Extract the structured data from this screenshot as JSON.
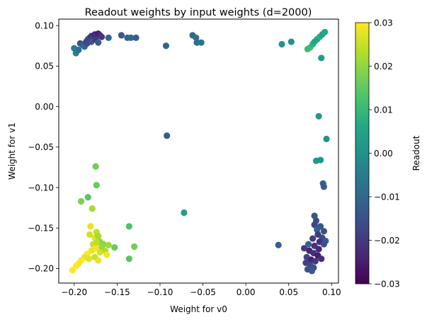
{
  "chart_data": {
    "type": "scatter",
    "title": "Readout weights by input weights  (d=2000)",
    "xlabel": "Weight for v0",
    "ylabel": "Weight for v1",
    "xlim": [
      -0.218,
      0.108
    ],
    "ylim": [
      -0.218,
      0.108
    ],
    "xticks": [
      -0.2,
      -0.15,
      -0.1,
      -0.05,
      0.0,
      0.05,
      0.1
    ],
    "xtick_labels": [
      "−0.20",
      "−0.15",
      "−0.10",
      "−0.05",
      "0.00",
      "0.05",
      "0.10"
    ],
    "yticks": [
      0.1,
      0.05,
      0.0,
      -0.05,
      -0.1,
      -0.15,
      -0.2
    ],
    "ytick_labels": [
      "0.10",
      "0.05",
      "0.00",
      "−0.05",
      "−0.10",
      "−0.15",
      "−0.20"
    ],
    "grid": false,
    "colorbar": {
      "label": "Readout",
      "colormap": "viridis",
      "min": -0.03,
      "max": 0.03,
      "ticks": [
        0.03,
        0.02,
        0.01,
        0.0,
        -0.01,
        -0.02,
        -0.03
      ],
      "tick_labels": [
        "0.03",
        "0.02",
        "0.01",
        "0.00",
        "−0.01",
        "−0.02",
        "−0.03"
      ]
    },
    "points": [
      {
        "x": -0.2,
        "y": 0.072,
        "c": -0.005
      },
      {
        "x": -0.198,
        "y": 0.066,
        "c": -0.004
      },
      {
        "x": -0.195,
        "y": 0.07,
        "c": -0.008
      },
      {
        "x": -0.193,
        "y": 0.078,
        "c": -0.015
      },
      {
        "x": -0.19,
        "y": 0.076,
        "c": -0.012
      },
      {
        "x": -0.188,
        "y": 0.074,
        "c": -0.01
      },
      {
        "x": -0.186,
        "y": 0.08,
        "c": -0.02
      },
      {
        "x": -0.184,
        "y": 0.083,
        "c": -0.018
      },
      {
        "x": -0.182,
        "y": 0.085,
        "c": -0.016
      },
      {
        "x": -0.18,
        "y": 0.087,
        "c": -0.022
      },
      {
        "x": -0.178,
        "y": 0.086,
        "c": -0.019
      },
      {
        "x": -0.176,
        "y": 0.089,
        "c": -0.024
      },
      {
        "x": -0.174,
        "y": 0.088,
        "c": -0.021
      },
      {
        "x": -0.172,
        "y": 0.09,
        "c": -0.025
      },
      {
        "x": -0.17,
        "y": 0.088,
        "c": -0.023
      },
      {
        "x": -0.168,
        "y": 0.086,
        "c": -0.02
      },
      {
        "x": -0.185,
        "y": 0.078,
        "c": -0.017
      },
      {
        "x": -0.18,
        "y": 0.08,
        "c": -0.014
      },
      {
        "x": -0.175,
        "y": 0.083,
        "c": -0.02
      },
      {
        "x": -0.172,
        "y": 0.079,
        "c": -0.013
      },
      {
        "x": -0.16,
        "y": 0.085,
        "c": -0.01
      },
      {
        "x": -0.145,
        "y": 0.088,
        "c": -0.014
      },
      {
        "x": -0.138,
        "y": 0.085,
        "c": -0.011
      },
      {
        "x": -0.134,
        "y": 0.085,
        "c": -0.01
      },
      {
        "x": -0.128,
        "y": 0.085,
        "c": -0.012
      },
      {
        "x": -0.093,
        "y": 0.075,
        "c": -0.011
      },
      {
        "x": -0.062,
        "y": 0.088,
        "c": -0.01
      },
      {
        "x": -0.058,
        "y": 0.085,
        "c": -0.008
      },
      {
        "x": -0.057,
        "y": 0.079,
        "c": -0.009
      },
      {
        "x": -0.052,
        "y": 0.079,
        "c": -0.007
      },
      {
        "x": 0.042,
        "y": 0.077,
        "c": 0.001
      },
      {
        "x": 0.053,
        "y": 0.08,
        "c": 0.0
      },
      {
        "x": 0.072,
        "y": 0.071,
        "c": 0.01
      },
      {
        "x": 0.075,
        "y": 0.073,
        "c": 0.011
      },
      {
        "x": 0.078,
        "y": 0.077,
        "c": 0.008
      },
      {
        "x": 0.08,
        "y": 0.08,
        "c": 0.006
      },
      {
        "x": 0.083,
        "y": 0.083,
        "c": 0.005
      },
      {
        "x": 0.086,
        "y": 0.086,
        "c": 0.007
      },
      {
        "x": 0.089,
        "y": 0.089,
        "c": 0.004
      },
      {
        "x": 0.092,
        "y": 0.092,
        "c": 0.006
      },
      {
        "x": 0.088,
        "y": 0.06,
        "c": 0.003
      },
      {
        "x": 0.085,
        "y": -0.012,
        "c": 0.002
      },
      {
        "x": 0.094,
        "y": -0.04,
        "c": 0.001
      },
      {
        "x": 0.082,
        "y": -0.067,
        "c": 0.002
      },
      {
        "x": 0.087,
        "y": -0.066,
        "c": 0.001
      },
      {
        "x": -0.092,
        "y": -0.036,
        "c": -0.012
      },
      {
        "x": -0.072,
        "y": -0.131,
        "c": 0.003
      },
      {
        "x": 0.038,
        "y": -0.171,
        "c": -0.012
      },
      {
        "x": 0.09,
        "y": -0.095,
        "c": -0.012
      },
      {
        "x": 0.091,
        "y": -0.099,
        "c": -0.013
      },
      {
        "x": 0.08,
        "y": -0.135,
        "c": -0.014
      },
      {
        "x": 0.082,
        "y": -0.141,
        "c": -0.016
      },
      {
        "x": 0.08,
        "y": -0.146,
        "c": -0.018
      },
      {
        "x": 0.083,
        "y": -0.152,
        "c": -0.012
      },
      {
        "x": 0.087,
        "y": -0.148,
        "c": -0.014
      },
      {
        "x": 0.091,
        "y": -0.154,
        "c": -0.015
      },
      {
        "x": 0.084,
        "y": -0.158,
        "c": -0.02
      },
      {
        "x": 0.089,
        "y": -0.162,
        "c": -0.017
      },
      {
        "x": 0.093,
        "y": -0.166,
        "c": -0.013
      },
      {
        "x": 0.078,
        "y": -0.163,
        "c": -0.019
      },
      {
        "x": 0.086,
        "y": -0.167,
        "c": -0.022
      },
      {
        "x": 0.091,
        "y": -0.17,
        "c": -0.016
      },
      {
        "x": 0.08,
        "y": -0.172,
        "c": -0.021
      },
      {
        "x": 0.085,
        "y": -0.176,
        "c": -0.023
      },
      {
        "x": 0.068,
        "y": -0.175,
        "c": -0.02
      },
      {
        "x": 0.074,
        "y": -0.178,
        "c": -0.024
      },
      {
        "x": 0.079,
        "y": -0.181,
        "c": -0.022
      },
      {
        "x": 0.084,
        "y": -0.184,
        "c": -0.025
      },
      {
        "x": 0.071,
        "y": -0.186,
        "c": -0.018
      },
      {
        "x": 0.076,
        "y": -0.189,
        "c": -0.024
      },
      {
        "x": 0.081,
        "y": -0.191,
        "c": -0.021
      },
      {
        "x": 0.07,
        "y": -0.193,
        "c": -0.019
      },
      {
        "x": 0.075,
        "y": -0.196,
        "c": -0.017
      },
      {
        "x": 0.079,
        "y": -0.199,
        "c": -0.016
      },
      {
        "x": 0.072,
        "y": -0.201,
        "c": -0.015
      },
      {
        "x": 0.077,
        "y": -0.203,
        "c": -0.014
      },
      {
        "x": 0.088,
        "y": -0.188,
        "c": -0.022
      },
      {
        "x": 0.073,
        "y": -0.17,
        "c": -0.011
      },
      {
        "x": -0.175,
        "y": -0.074,
        "c": 0.017
      },
      {
        "x": -0.174,
        "y": -0.097,
        "c": 0.016
      },
      {
        "x": -0.184,
        "y": -0.112,
        "c": 0.014
      },
      {
        "x": -0.192,
        "y": -0.117,
        "c": 0.018
      },
      {
        "x": -0.179,
        "y": -0.126,
        "c": 0.022
      },
      {
        "x": -0.136,
        "y": -0.148,
        "c": 0.013
      },
      {
        "x": -0.181,
        "y": -0.148,
        "c": 0.028
      },
      {
        "x": -0.174,
        "y": -0.155,
        "c": 0.024
      },
      {
        "x": -0.182,
        "y": -0.158,
        "c": 0.026
      },
      {
        "x": -0.176,
        "y": -0.162,
        "c": 0.027
      },
      {
        "x": -0.172,
        "y": -0.16,
        "c": 0.022
      },
      {
        "x": -0.17,
        "y": -0.167,
        "c": 0.02
      },
      {
        "x": -0.166,
        "y": -0.17,
        "c": 0.019
      },
      {
        "x": -0.16,
        "y": -0.171,
        "c": 0.021
      },
      {
        "x": -0.153,
        "y": -0.174,
        "c": 0.016
      },
      {
        "x": -0.13,
        "y": -0.173,
        "c": 0.017
      },
      {
        "x": -0.136,
        "y": -0.188,
        "c": 0.014
      },
      {
        "x": -0.178,
        "y": -0.17,
        "c": 0.025
      },
      {
        "x": -0.175,
        "y": -0.175,
        "c": 0.029
      },
      {
        "x": -0.18,
        "y": -0.178,
        "c": 0.028
      },
      {
        "x": -0.185,
        "y": -0.182,
        "c": 0.03
      },
      {
        "x": -0.188,
        "y": -0.186,
        "c": 0.028
      },
      {
        "x": -0.192,
        "y": -0.19,
        "c": 0.03
      },
      {
        "x": -0.195,
        "y": -0.194,
        "c": 0.029
      },
      {
        "x": -0.198,
        "y": -0.197,
        "c": 0.03
      },
      {
        "x": -0.202,
        "y": -0.202,
        "c": 0.03
      },
      {
        "x": -0.183,
        "y": -0.188,
        "c": 0.027
      },
      {
        "x": -0.176,
        "y": -0.186,
        "c": 0.025
      },
      {
        "x": -0.17,
        "y": -0.18,
        "c": 0.026
      },
      {
        "x": -0.164,
        "y": -0.178,
        "c": 0.023
      },
      {
        "x": -0.172,
        "y": -0.19,
        "c": 0.028
      },
      {
        "x": -0.162,
        "y": -0.183,
        "c": 0.029
      },
      {
        "x": -0.168,
        "y": -0.173,
        "c": 0.021
      },
      {
        "x": -0.174,
        "y": -0.168,
        "c": 0.024
      }
    ]
  }
}
